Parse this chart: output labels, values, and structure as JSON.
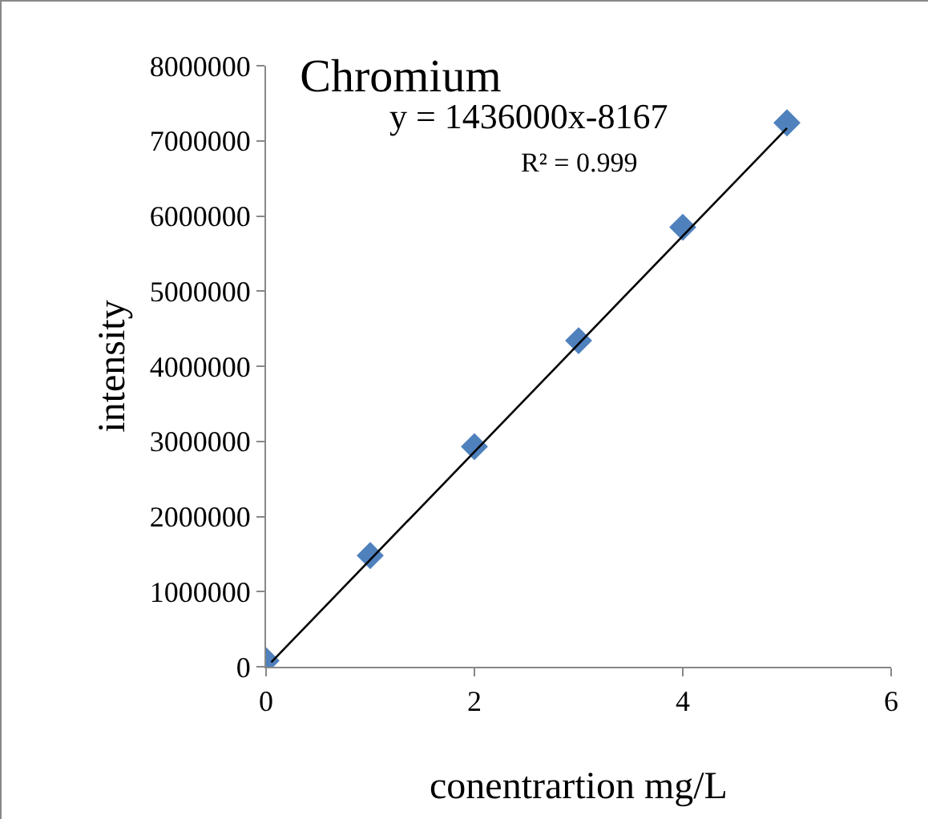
{
  "chart_data": {
    "type": "scatter",
    "title": "Chromium",
    "xlabel": "conentrartion mg/L",
    "ylabel": "intensity",
    "annotations": [
      "y = 1436000x-8167",
      "R² = 0.999"
    ],
    "xlim": [
      0,
      6
    ],
    "xticks": [
      0,
      2,
      4,
      6
    ],
    "ylim": [
      0,
      8000000
    ],
    "yticks": [
      0,
      1000000,
      2000000,
      3000000,
      4000000,
      5000000,
      6000000,
      7000000,
      8000000
    ],
    "grid": false,
    "marker": "diamond",
    "series": [
      {
        "type": "scatter",
        "color": "#4f81bd",
        "x": [
          0,
          1,
          2,
          3,
          4,
          5
        ],
        "values": [
          80000,
          1480000,
          2930000,
          4340000,
          5850000,
          7240000
        ]
      },
      {
        "type": "line",
        "color": "#000000",
        "marker": "none",
        "line_style": "solid",
        "x": [
          0.05,
          5
        ],
        "values": [
          60000,
          7170000
        ]
      }
    ]
  }
}
